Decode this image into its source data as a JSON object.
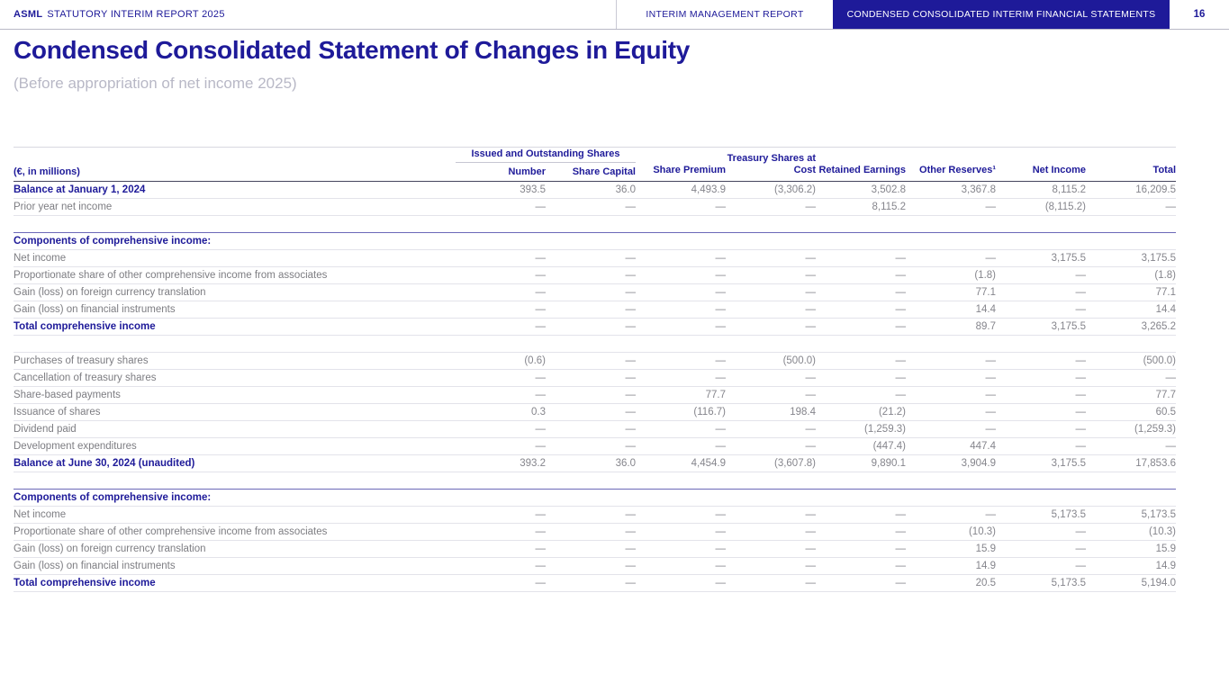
{
  "colors": {
    "brand_navy": "#1e1a99",
    "body_gray": "#7d7d82",
    "subtitle_gray": "#b8b8c6",
    "row_line": "#e3e3ea",
    "header_line_dark": "#46465e"
  },
  "header": {
    "brand": "ASML",
    "report_name": "STATUTORY INTERIM REPORT 2025",
    "tab_management_report": "INTERIM MANAGEMENT REPORT",
    "tab_financial_statements": "CONDENSED CONSOLIDATED INTERIM FINANCIAL STATEMENTS",
    "page_number": "16"
  },
  "page": {
    "title": "Condensed Consolidated Statement of Changes in Equity",
    "subtitle": "(Before appropriation of net income 2025)"
  },
  "table": {
    "unit_label": "(€, in millions)",
    "group_header": "Issued and Outstanding Shares",
    "columns": [
      "Number",
      "Share Capital",
      "Share Premium",
      "Treasury Shares at Cost",
      "Retained Earnings",
      "Other Reserves¹",
      "Net Income",
      "Total"
    ],
    "rows": [
      {
        "type": "balance",
        "label": "Balance at January 1, 2024",
        "values": [
          "393.5",
          "36.0",
          "4,493.9",
          "(3,306.2)",
          "3,502.8",
          "3,367.8",
          "8,115.2",
          "16,209.5"
        ]
      },
      {
        "type": "regular",
        "label": "Prior year net income",
        "values": [
          "—",
          "—",
          "—",
          "—",
          "8,115.2",
          "—",
          "(8,115.2)",
          "—"
        ]
      },
      {
        "type": "spacer"
      },
      {
        "type": "section",
        "border_top": "section",
        "label": "Components of comprehensive income:",
        "values": [
          "",
          "",
          "",
          "",
          "",
          "",
          "",
          ""
        ]
      },
      {
        "type": "regular",
        "label": "Net income",
        "values": [
          "—",
          "—",
          "—",
          "—",
          "—",
          "—",
          "3,175.5",
          "3,175.5"
        ]
      },
      {
        "type": "regular",
        "label": "Proportionate share of other comprehensive income from associates",
        "values": [
          "—",
          "—",
          "—",
          "—",
          "—",
          "(1.8)",
          "—",
          "(1.8)"
        ]
      },
      {
        "type": "regular",
        "label": "Gain (loss) on foreign currency translation",
        "values": [
          "—",
          "—",
          "—",
          "—",
          "—",
          "77.1",
          "—",
          "77.1"
        ]
      },
      {
        "type": "regular",
        "label": "Gain (loss) on financial instruments",
        "values": [
          "—",
          "—",
          "—",
          "—",
          "—",
          "14.4",
          "—",
          "14.4"
        ]
      },
      {
        "type": "total",
        "label": "Total comprehensive income",
        "values": [
          "—",
          "—",
          "—",
          "—",
          "—",
          "89.7",
          "3,175.5",
          "3,265.2"
        ]
      },
      {
        "type": "spacer"
      },
      {
        "type": "regular",
        "border_top": "light",
        "label": "Purchases of treasury shares",
        "values": [
          "(0.6)",
          "—",
          "—",
          "(500.0)",
          "—",
          "—",
          "—",
          "(500.0)"
        ]
      },
      {
        "type": "regular",
        "label": "Cancellation of treasury shares",
        "values": [
          "—",
          "—",
          "—",
          "—",
          "—",
          "—",
          "—",
          "—"
        ]
      },
      {
        "type": "regular",
        "label": "Share-based payments",
        "values": [
          "—",
          "—",
          "77.7",
          "—",
          "—",
          "—",
          "—",
          "77.7"
        ]
      },
      {
        "type": "regular",
        "label": "Issuance of shares",
        "values": [
          "0.3",
          "—",
          "(116.7)",
          "198.4",
          "(21.2)",
          "—",
          "—",
          "60.5"
        ]
      },
      {
        "type": "regular",
        "label": "Dividend paid",
        "values": [
          "—",
          "—",
          "—",
          "—",
          "(1,259.3)",
          "—",
          "—",
          "(1,259.3)"
        ]
      },
      {
        "type": "regular",
        "label": "Development expenditures",
        "values": [
          "—",
          "—",
          "—",
          "—",
          "(447.4)",
          "447.4",
          "—",
          "—"
        ]
      },
      {
        "type": "balance",
        "border_top": "mid",
        "label": "Balance at June 30, 2024 (unaudited)",
        "values": [
          "393.2",
          "36.0",
          "4,454.9",
          "(3,607.8)",
          "9,890.1",
          "3,904.9",
          "3,175.5",
          "17,853.6"
        ]
      },
      {
        "type": "spacer"
      },
      {
        "type": "section",
        "border_top": "section",
        "label": "Components of comprehensive income:",
        "values": [
          "",
          "",
          "",
          "",
          "",
          "",
          "",
          ""
        ]
      },
      {
        "type": "regular",
        "label": "Net income",
        "values": [
          "—",
          "—",
          "—",
          "—",
          "—",
          "—",
          "5,173.5",
          "5,173.5"
        ]
      },
      {
        "type": "regular",
        "label": "Proportionate share of other comprehensive income from associates",
        "values": [
          "—",
          "—",
          "—",
          "—",
          "—",
          "(10.3)",
          "—",
          "(10.3)"
        ]
      },
      {
        "type": "regular",
        "label": "Gain (loss) on foreign currency translation",
        "values": [
          "—",
          "—",
          "—",
          "—",
          "—",
          "15.9",
          "—",
          "15.9"
        ]
      },
      {
        "type": "regular",
        "label": "Gain (loss) on financial instruments",
        "values": [
          "—",
          "—",
          "—",
          "—",
          "—",
          "14.9",
          "—",
          "14.9"
        ]
      },
      {
        "type": "total",
        "label": "Total comprehensive income",
        "values": [
          "—",
          "—",
          "—",
          "—",
          "—",
          "20.5",
          "5,173.5",
          "5,194.0"
        ]
      }
    ]
  }
}
